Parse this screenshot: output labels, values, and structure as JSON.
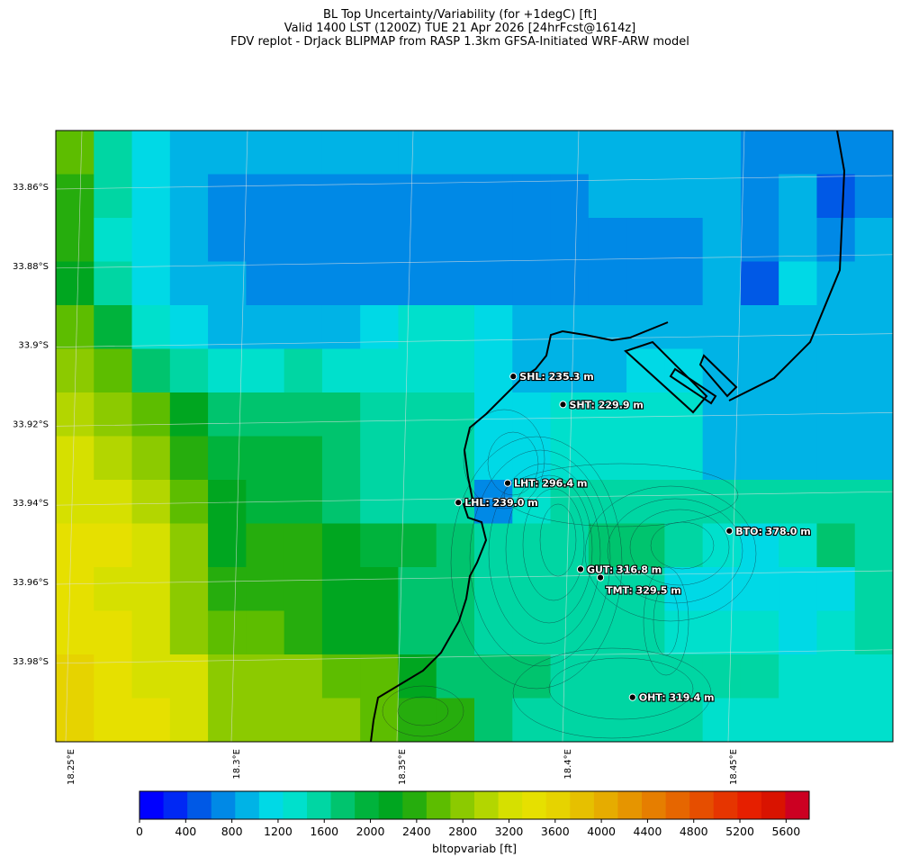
{
  "title": {
    "line1": "BL Top Uncertainty/Variability (for +1degC) [ft]",
    "line2": "Valid 1400 LST (1200Z) TUE 21 Apr 2026 [24hrFcst@1614z]",
    "line3": "FDV replot - DrJack BLIPMAP from RASP 1.3km GFSA-Initiated WRF-ARW model"
  },
  "map": {
    "lat_labels": [
      "33.86°S",
      "33.88°S",
      "33.9°S",
      "33.92°S",
      "33.94°S",
      "33.96°S",
      "33.98°S"
    ],
    "lon_labels": [
      "18.25°E",
      "18.3°E",
      "18.35°E",
      "18.4°E",
      "18.45°E"
    ],
    "grid_ft": [
      [
        2400,
        1400,
        1100,
        900,
        900,
        900,
        900,
        900,
        900,
        900,
        900,
        900,
        900,
        900,
        900,
        900,
        900,
        900,
        600,
        700,
        700,
        600
      ],
      [
        2200,
        1400,
        1100,
        900,
        700,
        700,
        700,
        700,
        700,
        700,
        700,
        700,
        700,
        700,
        800,
        800,
        800,
        900,
        700,
        900,
        500,
        700
      ],
      [
        2200,
        1300,
        1100,
        900,
        700,
        700,
        700,
        700,
        700,
        700,
        700,
        700,
        700,
        700,
        700,
        700,
        700,
        800,
        700,
        900,
        700,
        900
      ],
      [
        2100,
        1500,
        1100,
        900,
        900,
        700,
        700,
        700,
        700,
        700,
        700,
        700,
        700,
        700,
        700,
        700,
        700,
        800,
        400,
        1000,
        800,
        900
      ],
      [
        2400,
        1800,
        1300,
        1100,
        900,
        900,
        900,
        900,
        1000,
        1300,
        1300,
        1000,
        800,
        800,
        800,
        800,
        800,
        800,
        800,
        800,
        800,
        900
      ],
      [
        2600,
        2400,
        1600,
        1400,
        1300,
        1300,
        1400,
        1300,
        1200,
        1300,
        1300,
        1000,
        800,
        800,
        800,
        1000,
        1000,
        800,
        800,
        800,
        800,
        800
      ],
      [
        2800,
        2600,
        2400,
        2000,
        1700,
        1700,
        1600,
        1600,
        1500,
        1500,
        1500,
        1000,
        1000,
        1200,
        1200,
        1200,
        1200,
        900,
        800,
        800,
        800,
        800
      ],
      [
        3000,
        2800,
        2600,
        2200,
        1900,
        1800,
        1800,
        1600,
        1500,
        1500,
        1400,
        1000,
        1000,
        1200,
        1200,
        1200,
        1200,
        900,
        900,
        900,
        900,
        900
      ],
      [
        3100,
        3000,
        2800,
        2400,
        2000,
        1800,
        1800,
        1600,
        1500,
        1500,
        1400,
        700,
        1200,
        1400,
        1400,
        1400,
        1400,
        1400,
        1400,
        1400,
        1500,
        1400
      ],
      [
        3300,
        3200,
        3000,
        2600,
        2000,
        2200,
        2200,
        2100,
        1800,
        1800,
        1700,
        1400,
        1400,
        1400,
        1600,
        1600,
        1400,
        1200,
        1100,
        1200,
        1600,
        1500
      ],
      [
        3200,
        3100,
        3000,
        2600,
        2200,
        2200,
        2200,
        2100,
        2000,
        1600,
        1600,
        1400,
        1400,
        1400,
        1400,
        1400,
        1000,
        1000,
        1000,
        1000,
        1000,
        1400
      ],
      [
        3300,
        3200,
        3000,
        2600,
        2400,
        2400,
        2200,
        2100,
        2000,
        1600,
        1600,
        1400,
        1400,
        1400,
        1400,
        1400,
        1200,
        1200,
        1200,
        1000,
        1200,
        1400
      ],
      [
        3400,
        3300,
        3100,
        3000,
        2600,
        2600,
        2600,
        2400,
        2400,
        2000,
        1600,
        1600,
        1600,
        1400,
        1400,
        1400,
        1400,
        1400,
        1400,
        1200,
        1200,
        1300
      ],
      [
        3500,
        3300,
        3200,
        3000,
        2600,
        2600,
        2600,
        2600,
        2400,
        2200,
        2200,
        1600,
        1400,
        1400,
        1400,
        1400,
        1400,
        1300,
        1300,
        1300,
        1300,
        1300
      ]
    ],
    "sites": [
      {
        "code": "SHL",
        "label": "SHL: 235.3 m",
        "lon": 18.3835,
        "lat": -33.9081
      },
      {
        "code": "SHT",
        "label": "SHT: 229.9 m",
        "lon": 18.3985,
        "lat": -33.9152
      },
      {
        "code": "LHT",
        "label": "LHT: 296.4 m",
        "lon": 18.3818,
        "lat": -33.9351
      },
      {
        "code": "LHL",
        "label": "LHL: 239.0 m",
        "lon": 18.3669,
        "lat": -33.94
      },
      {
        "code": "BTO",
        "label": "BTO: 378.0 m",
        "lon": 18.4487,
        "lat": -33.9472
      },
      {
        "code": "GUT",
        "label": "GUT: 316.8 m",
        "lon": 18.4038,
        "lat": -33.9569
      },
      {
        "code": "TMT",
        "label": "TMT: 329.5 m",
        "lon": 18.4098,
        "lat": -33.959
      },
      {
        "code": "OHT",
        "label": "OHT: 319.4 m",
        "lon": 18.4195,
        "lat": -33.9893
      }
    ]
  },
  "colorbar": {
    "ticks": [
      0,
      400,
      800,
      1200,
      1600,
      2000,
      2400,
      2800,
      3200,
      3600,
      4000,
      4400,
      4800,
      5200,
      5600
    ],
    "label": "bltopvariab [ft]",
    "vmin": 0,
    "vmax": 5800,
    "step": 200,
    "colors": [
      "#0000ff",
      "#0028f4",
      "#0059e6",
      "#0089e6",
      "#00b3e6",
      "#00d9e6",
      "#00e0cc",
      "#00d6a3",
      "#00c46e",
      "#00b33c",
      "#00a620",
      "#26ad0d",
      "#5dbd00",
      "#8cca00",
      "#b3d600",
      "#d6e000",
      "#e6e000",
      "#e6d300",
      "#e6c000",
      "#e6ac00",
      "#e69500",
      "#e67e00",
      "#e66600",
      "#e64e00",
      "#e63500",
      "#e61f00",
      "#d91300",
      "#cc0022"
    ]
  }
}
